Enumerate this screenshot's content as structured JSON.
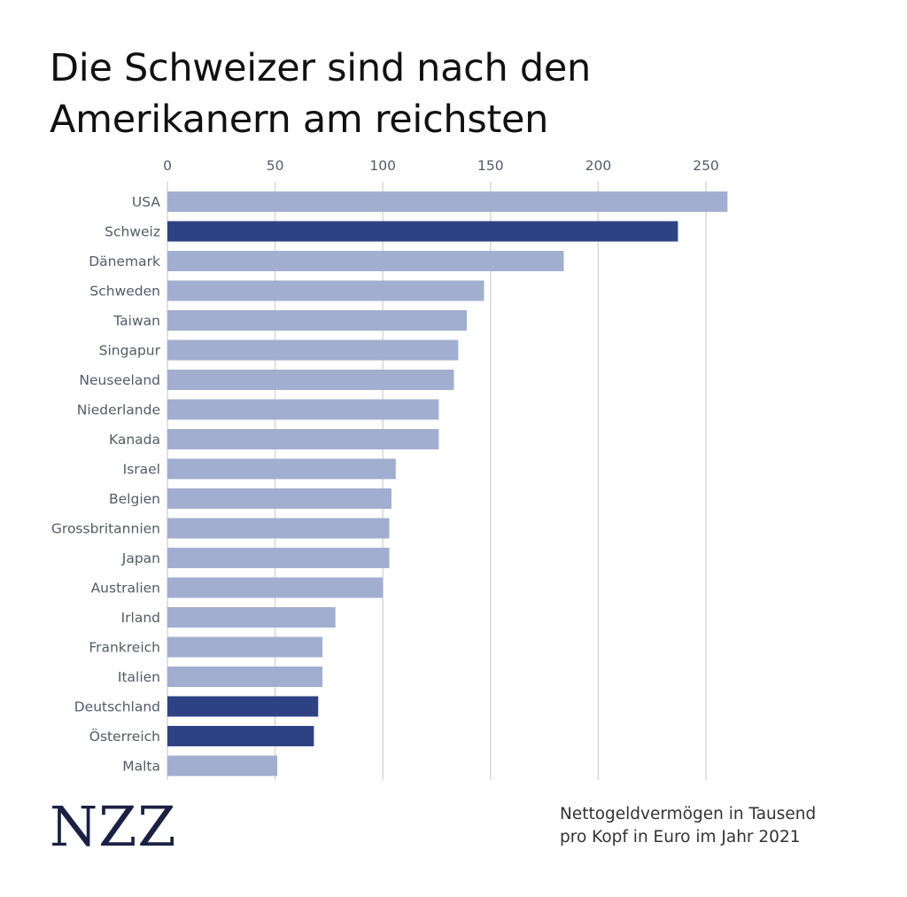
{
  "chart_data": {
    "type": "bar",
    "orientation": "horizontal",
    "title": "Die Schweizer sind nach den Amerikanern am reichsten",
    "title_lines": [
      "Die Schweizer sind nach den",
      "Amerikanern am reichsten"
    ],
    "categories": [
      "USA",
      "Schweiz",
      "Dänemark",
      "Schweden",
      "Taiwan",
      "Singapur",
      "Neuseeland",
      "Niederlande",
      "Kanada",
      "Israel",
      "Belgien",
      "Grossbritannien",
      "Japan",
      "Australien",
      "Irland",
      "Frankreich",
      "Italien",
      "Deutschland",
      "Österreich",
      "Malta"
    ],
    "values": [
      260,
      237,
      184,
      147,
      139,
      135,
      133,
      126,
      126,
      106,
      104,
      103,
      103,
      100,
      78,
      72,
      72,
      70,
      68,
      51
    ],
    "highlighted": [
      "Schweiz",
      "Deutschland",
      "Österreich"
    ],
    "xlim": [
      0,
      260
    ],
    "xticks": [
      0,
      50,
      100,
      150,
      200,
      250
    ],
    "axis_position": "top",
    "grid": true,
    "colors": {
      "default": "#a2aed0",
      "highlight": "#2e4283",
      "grid": "#d8d8d8"
    }
  },
  "brand": {
    "logo_text": "NZZ"
  },
  "note": {
    "lines": [
      "Nettogeldvermögen in Tausend",
      "pro Kopf in Euro im Jahr 2021"
    ]
  }
}
